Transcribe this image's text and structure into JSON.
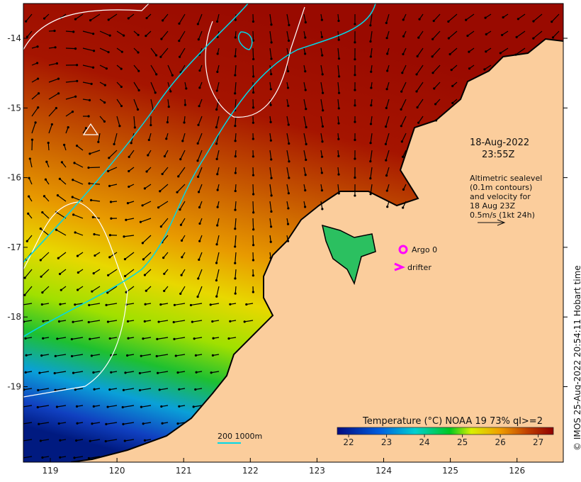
{
  "map": {
    "date": "18-Aug-2022",
    "time": "23:55Z",
    "altimetry_note": [
      "Altimetric sealevel",
      "(0.1m contours)",
      "and velocity for",
      "18 Aug 23Z",
      "0.5m/s (1kt 24h)"
    ],
    "legend": {
      "argo": "Argo 0",
      "drifter": "drifter"
    },
    "depth_scale": "200  1000m",
    "credit": "© IMOS 25-Aug-2022 20:54:11 Hobart time",
    "lon_ticks": [
      "119",
      "120",
      "121",
      "122",
      "123",
      "124",
      "125",
      "126"
    ],
    "lat_ticks": [
      "-14",
      "-15",
      "-16",
      "-17",
      "-18",
      "-19"
    ]
  },
  "colorbar": {
    "title": "Temperature (°C) NOAA 19 73% ql>=2",
    "ticks": [
      "22",
      "23",
      "24",
      "25",
      "26",
      "27"
    ],
    "range": [
      21.7,
      27.4
    ]
  },
  "colors": {
    "land": "#fbcd9c",
    "argo": "#ff00ff",
    "contour200": "#00d8e8",
    "sealevel": "#ffffff"
  }
}
